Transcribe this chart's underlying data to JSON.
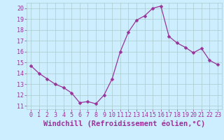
{
  "x": [
    0,
    1,
    2,
    3,
    4,
    5,
    6,
    7,
    8,
    9,
    10,
    11,
    12,
    13,
    14,
    15,
    16,
    17,
    18,
    19,
    20,
    21,
    22,
    23
  ],
  "y": [
    14.7,
    14.0,
    13.5,
    13.0,
    12.7,
    12.2,
    11.3,
    11.4,
    11.2,
    12.0,
    13.5,
    16.0,
    17.8,
    18.9,
    19.3,
    20.0,
    20.2,
    17.4,
    16.8,
    16.4,
    15.9,
    16.3,
    15.2,
    14.8
  ],
  "line_color": "#993399",
  "marker": "D",
  "marker_size": 2.5,
  "bg_color": "#cceeff",
  "grid_color": "#aacccc",
  "xlabel": "Windchill (Refroidissement éolien,°C)",
  "xlim": [
    -0.5,
    23.5
  ],
  "ylim": [
    10.7,
    20.5
  ],
  "yticks": [
    11,
    12,
    13,
    14,
    15,
    16,
    17,
    18,
    19,
    20
  ],
  "xticks": [
    0,
    1,
    2,
    3,
    4,
    5,
    6,
    7,
    8,
    9,
    10,
    11,
    12,
    13,
    14,
    15,
    16,
    17,
    18,
    19,
    20,
    21,
    22,
    23
  ],
  "tick_color": "#993399",
  "label_color": "#993399",
  "xlabel_fontsize": 7.5,
  "tick_fontsize": 6.0
}
